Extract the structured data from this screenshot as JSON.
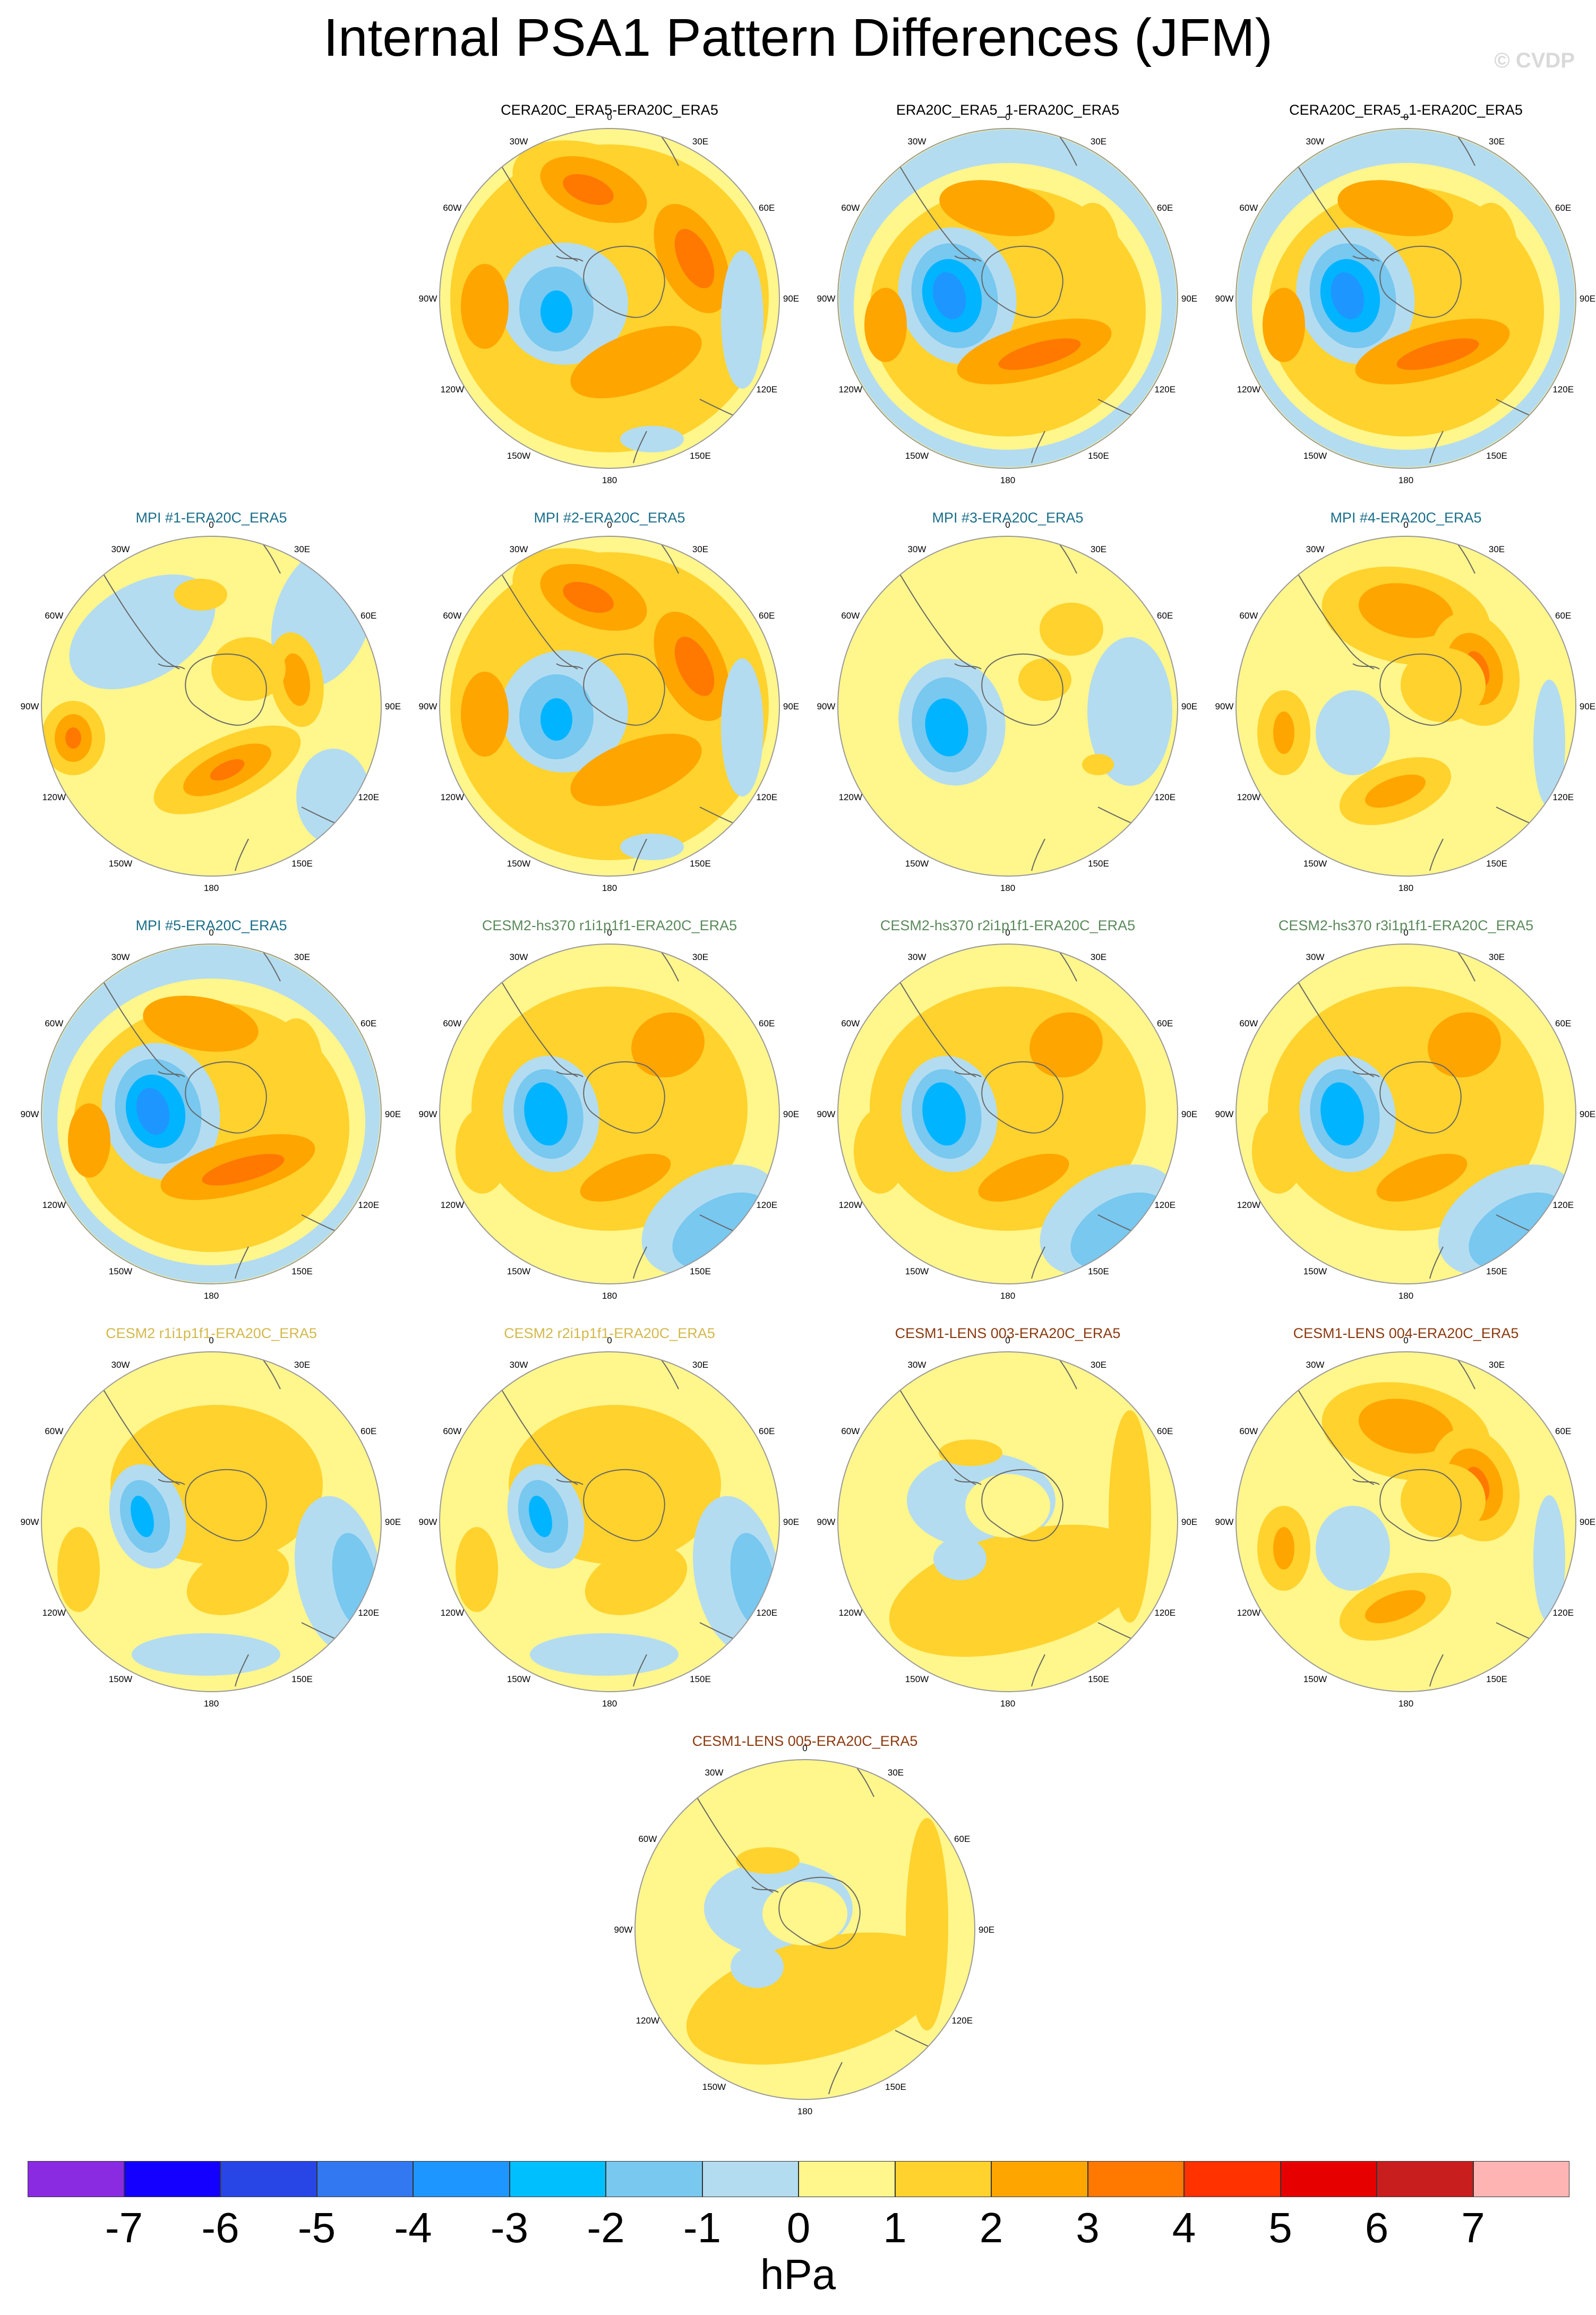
{
  "title": "Internal PSA1 Pattern Differences (JFM)",
  "watermark": "© CVDP",
  "colors": {
    "neg1": "#b4dcf0",
    "neg2": "#78c8f0",
    "neg3": "#00b4ff",
    "neg4": "#1e96ff",
    "pos1": "#fff68c",
    "pos2": "#ffd22d",
    "pos3": "#ffa500",
    "pos4": "#ff7800"
  },
  "lon_labels": [
    "0",
    "30E",
    "60E",
    "90E",
    "120E",
    "150E",
    "180",
    "150W",
    "120W",
    "90W",
    "60W",
    "30W"
  ],
  "panels": [
    {
      "title": "CERA20C_ERA5-ERA20C_ERA5",
      "title_color": "#000000",
      "pattern": "A"
    },
    {
      "title": "ERA20C_ERA5_1-ERA20C_ERA5",
      "title_color": "#000000",
      "pattern": "B"
    },
    {
      "title": "CERA20C_ERA5_1-ERA20C_ERA5",
      "title_color": "#000000",
      "pattern": "B"
    },
    {
      "title": "MPI #1-ERA20C_ERA5",
      "title_color": "#1a6e8a",
      "pattern": "C"
    },
    {
      "title": "MPI #2-ERA20C_ERA5",
      "title_color": "#1a6e8a",
      "pattern": "A"
    },
    {
      "title": "MPI #3-ERA20C_ERA5",
      "title_color": "#1a6e8a",
      "pattern": "D"
    },
    {
      "title": "MPI #4-ERA20C_ERA5",
      "title_color": "#1a6e8a",
      "pattern": "E"
    },
    {
      "title": "MPI #5-ERA20C_ERA5",
      "title_color": "#1a6e8a",
      "pattern": "B"
    },
    {
      "title": "CESM2-hs370 r1i1p1f1-ERA20C_ERA5",
      "title_color": "#5a8a5a",
      "pattern": "F"
    },
    {
      "title": "CESM2-hs370 r2i1p1f1-ERA20C_ERA5",
      "title_color": "#5a8a5a",
      "pattern": "F"
    },
    {
      "title": "CESM2-hs370 r3i1p1f1-ERA20C_ERA5",
      "title_color": "#5a8a5a",
      "pattern": "F"
    },
    {
      "title": "CESM2 r1i1p1f1-ERA20C_ERA5",
      "title_color": "#d4b84a",
      "pattern": "G"
    },
    {
      "title": "CESM2 r2i1p1f1-ERA20C_ERA5",
      "title_color": "#d4b84a",
      "pattern": "G"
    },
    {
      "title": "CESM1-LENS 003-ERA20C_ERA5",
      "title_color": "#8b3a0f",
      "pattern": "H"
    },
    {
      "title": "CESM1-LENS 004-ERA20C_ERA5",
      "title_color": "#8b3a0f",
      "pattern": "E"
    },
    {
      "title": "CESM1-LENS 005-ERA20C_ERA5",
      "title_color": "#8b3a0f",
      "pattern": "H"
    }
  ],
  "colorbar": {
    "colors": [
      "#8a2be2",
      "#1400ff",
      "#2846e6",
      "#3278f0",
      "#1e96ff",
      "#00bfff",
      "#78c8f0",
      "#b4dcf0",
      "#fff68c",
      "#ffd22d",
      "#ffa500",
      "#ff7800",
      "#ff3200",
      "#e60000",
      "#c81e1e",
      "#ffb4b4"
    ],
    "labels": [
      "-7",
      "-6",
      "-5",
      "-4",
      "-3",
      "-2",
      "-1",
      "0",
      "1",
      "2",
      "3",
      "4",
      "5",
      "6",
      "7"
    ],
    "units": "hPa"
  }
}
